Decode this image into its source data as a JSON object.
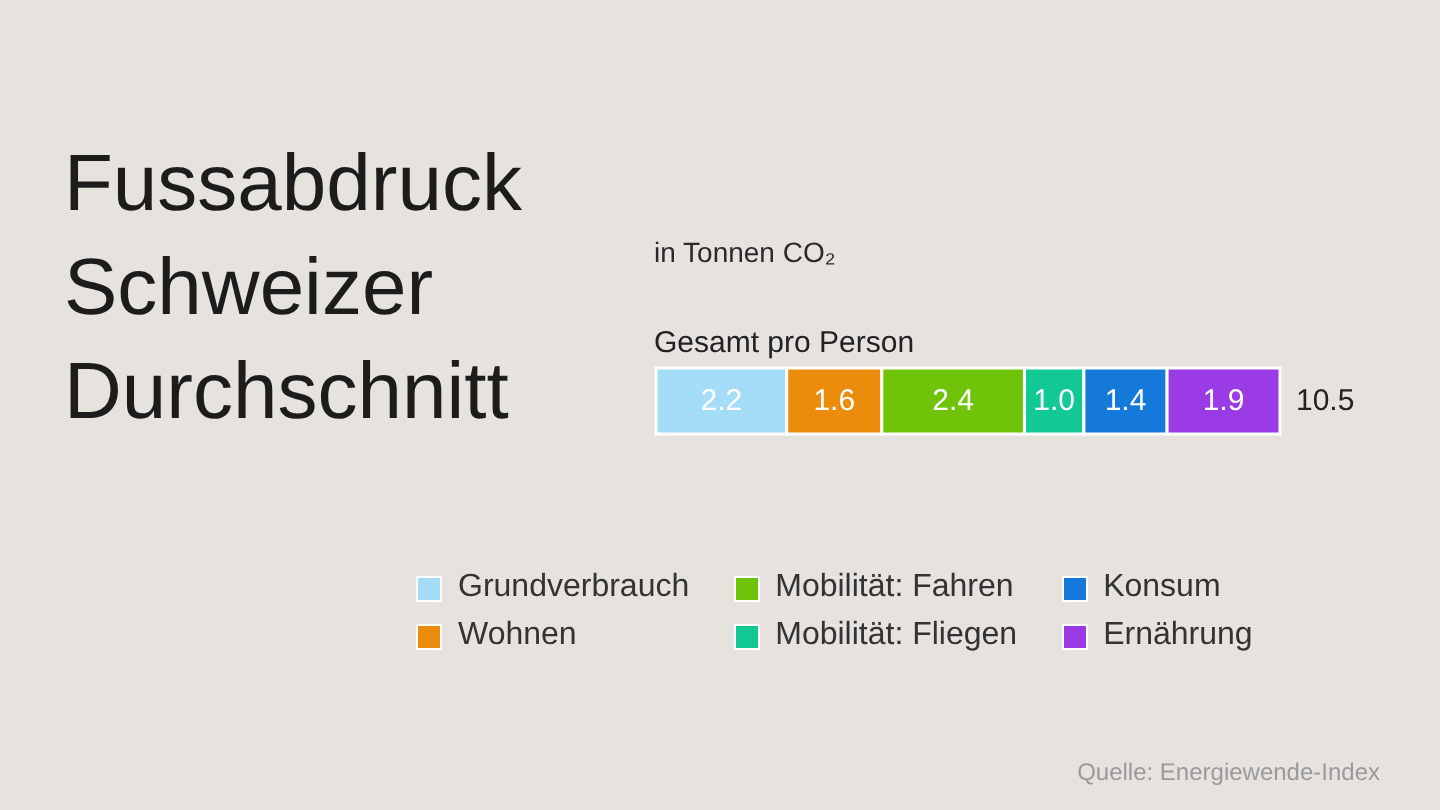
{
  "chart_data": {
    "type": "bar",
    "title": "Fussabdruck Schweizer Durchschnitt",
    "subtitle": "in Tonnen CO₂",
    "categories": [
      "Gesamt pro Person"
    ],
    "orientation": "horizontal",
    "stacked": true,
    "tick_labels": "y",
    "legend": "bottom",
    "series": [
      {
        "name": "Grundverbrauch",
        "color": "#a5dcf7",
        "values": [
          2.2
        ],
        "value_labels": [
          "2.2"
        ]
      },
      {
        "name": "Wohnen",
        "color": "#eb8c0c",
        "values": [
          1.6
        ],
        "value_labels": [
          "1.6"
        ]
      },
      {
        "name": "Mobilität: Fahren",
        "color": "#6fc40a",
        "values": [
          2.4
        ],
        "value_labels": [
          "2.4"
        ]
      },
      {
        "name": "Mobilität: Fliegen",
        "color": "#12c996",
        "values": [
          1.0
        ],
        "value_labels": [
          "1.0"
        ]
      },
      {
        "name": "Konsum",
        "color": "#1479d8",
        "values": [
          1.4
        ],
        "value_labels": [
          "1.4"
        ]
      },
      {
        "name": "Ernährung",
        "color": "#9b3be6",
        "values": [
          1.9
        ],
        "value_labels": [
          "1.9"
        ]
      }
    ],
    "totals": [
      "10.5"
    ],
    "annotations": [
      "Quelle: Energiewende-Index"
    ]
  }
}
